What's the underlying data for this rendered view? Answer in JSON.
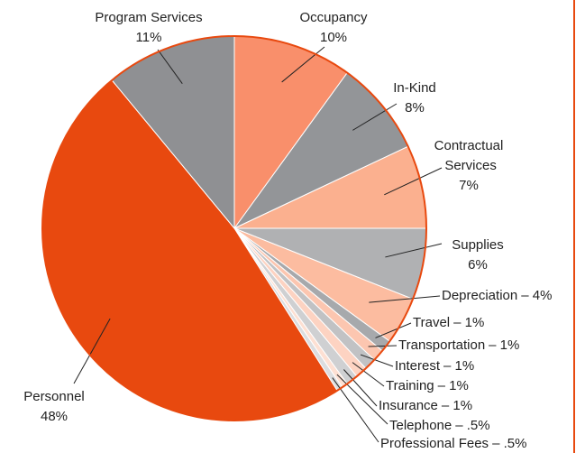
{
  "chart_data": {
    "type": "pie",
    "categories": [
      "Occupancy",
      "In-Kind",
      "Contractual Services",
      "Supplies",
      "Depreciation",
      "Travel",
      "Transportation",
      "Interest",
      "Training",
      "Insurance",
      "Telephone",
      "Professional Fees",
      "Personnel",
      "Program Services"
    ],
    "values": [
      10,
      8,
      7,
      6,
      4,
      1,
      1,
      1,
      1,
      1,
      0.5,
      0.5,
      48,
      11
    ],
    "value_labels": [
      "10%",
      "8%",
      "7%",
      "6%",
      "– 4%",
      "– 1%",
      "– 1%",
      "– 1%",
      "– 1%",
      "– 1%",
      "– .5%",
      "– .5%",
      "48%",
      "11%"
    ],
    "colors": [
      "#f98f6b",
      "#939598",
      "#fbb08f",
      "#b0b1b3",
      "#fcbca0",
      "#a7a9ac",
      "#fcc6b0",
      "#c1c2c4",
      "#fdd3c2",
      "#cfd0d2",
      "#fde0d3",
      "#dcdddf",
      "#e8490f",
      "#8f9093"
    ]
  }
}
